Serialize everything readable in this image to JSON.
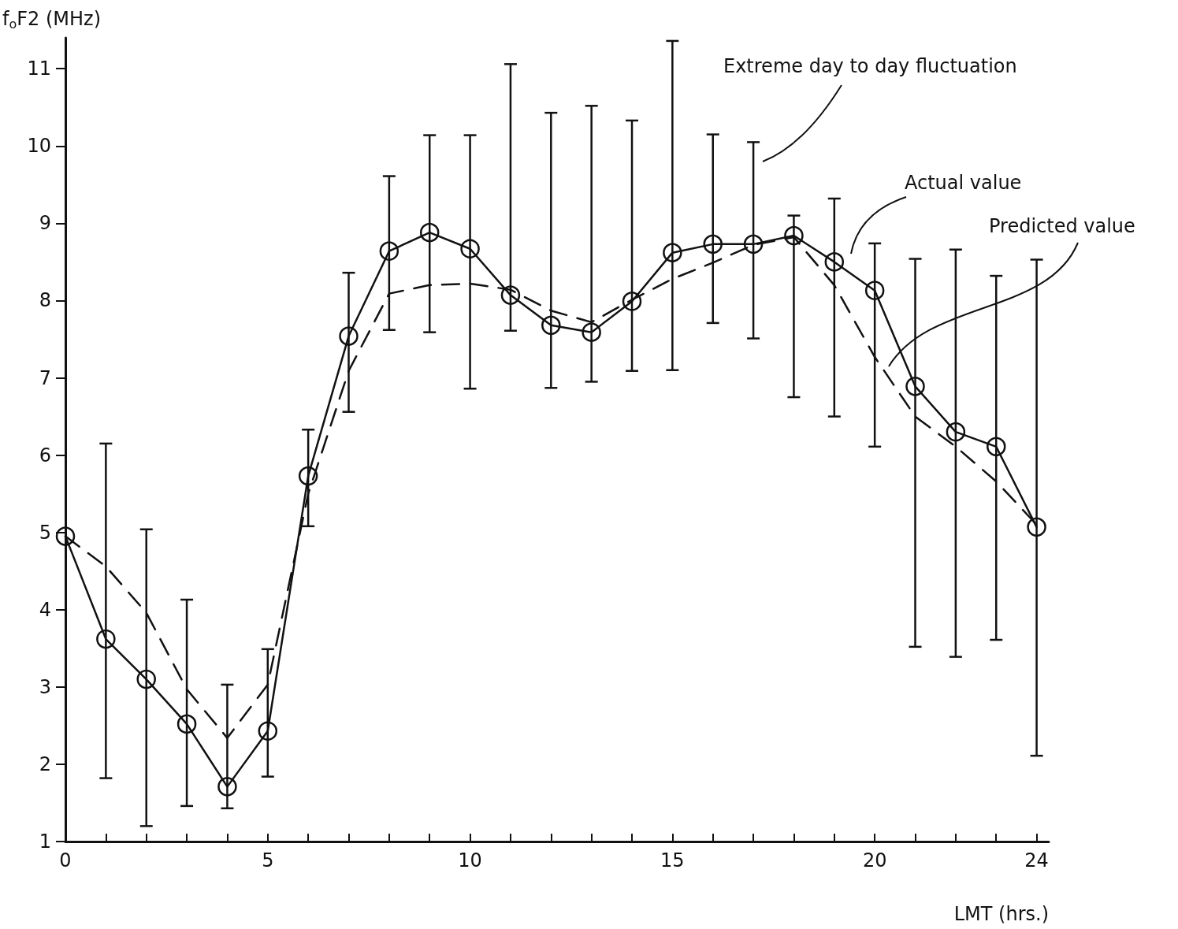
{
  "chart_data": {
    "type": "line",
    "ylabel": "f$_{o}$F2 (MHz)",
    "xlabel": "LMT (hrs.)",
    "annotations": [
      "Extreme day to day fluctuation"
    ],
    "x": [
      0,
      1,
      2,
      3,
      4,
      5,
      6,
      7,
      8,
      9,
      10,
      11,
      12,
      13,
      14,
      15,
      16,
      17,
      18,
      19,
      20,
      21,
      22,
      23,
      24
    ],
    "series": [
      {
        "name": "Actual value",
        "color": "#111111",
        "marker": "circle",
        "line_style": "solid",
        "values": [
          4.95,
          3.62,
          3.1,
          2.52,
          1.71,
          2.43,
          5.73,
          7.54,
          8.64,
          8.88,
          8.67,
          8.07,
          7.68,
          7.59,
          7.99,
          8.62,
          8.73,
          8.73,
          8.84,
          8.5,
          8.13,
          6.89,
          6.3,
          6.11,
          5.07
        ],
        "errors": [
          null,
          [
            1.82,
            6.15
          ],
          [
            1.2,
            5.04
          ],
          [
            1.46,
            4.13
          ],
          [
            1.43,
            3.03
          ],
          [
            1.84,
            3.49
          ],
          [
            5.08,
            6.33
          ],
          [
            6.56,
            8.36
          ],
          [
            7.62,
            9.61
          ],
          [
            7.59,
            10.14
          ],
          [
            6.86,
            10.14
          ],
          [
            7.61,
            11.06
          ],
          [
            6.87,
            10.43
          ],
          [
            6.95,
            10.52
          ],
          [
            7.09,
            10.33
          ],
          [
            7.1,
            11.36
          ],
          [
            7.71,
            10.15
          ],
          [
            7.51,
            10.05
          ],
          [
            6.75,
            9.1
          ],
          [
            6.5,
            9.32
          ],
          [
            6.11,
            8.74
          ],
          [
            3.52,
            8.54
          ],
          [
            3.39,
            8.66
          ],
          [
            3.61,
            8.32
          ],
          [
            2.11,
            8.53
          ]
        ]
      },
      {
        "name": "Predicted value",
        "color": "#111111",
        "marker": "none",
        "line_style": "dashed",
        "values": [
          4.95,
          4.56,
          3.96,
          2.97,
          2.34,
          3.03,
          5.5,
          7.09,
          8.09,
          8.2,
          8.22,
          8.14,
          7.87,
          7.72,
          8.01,
          8.28,
          8.49,
          8.72,
          8.82,
          8.2,
          7.27,
          6.5,
          6.11,
          5.66,
          5.1
        ]
      }
    ],
    "xlim": [
      0,
      24.3
    ],
    "ylim": [
      1,
      11.4
    ],
    "xticks": [
      0,
      {
        "value": 1,
        "label": null
      },
      {
        "value": 2,
        "label": null
      },
      {
        "value": 3,
        "label": null
      },
      {
        "value": 4,
        "label": null
      },
      5,
      {
        "value": 6,
        "label": null
      },
      {
        "value": 7,
        "label": null
      },
      {
        "value": 8,
        "label": null
      },
      {
        "value": 9,
        "label": null
      },
      10,
      {
        "value": 11,
        "label": null
      },
      {
        "value": 12,
        "label": null
      },
      {
        "value": 13,
        "label": null
      },
      {
        "value": 14,
        "label": null
      },
      15,
      {
        "value": 16,
        "label": null
      },
      {
        "value": 17,
        "label": null
      },
      {
        "value": 18,
        "label": null
      },
      {
        "value": 19,
        "label": null
      },
      20,
      {
        "value": 21,
        "label": null
      },
      {
        "value": 22,
        "label": null
      },
      {
        "value": 23,
        "label": null
      },
      24
    ],
    "yticks": [
      1,
      2,
      3,
      4,
      5,
      6,
      7,
      8,
      9,
      10,
      11
    ],
    "grid": false,
    "legend": false
  }
}
